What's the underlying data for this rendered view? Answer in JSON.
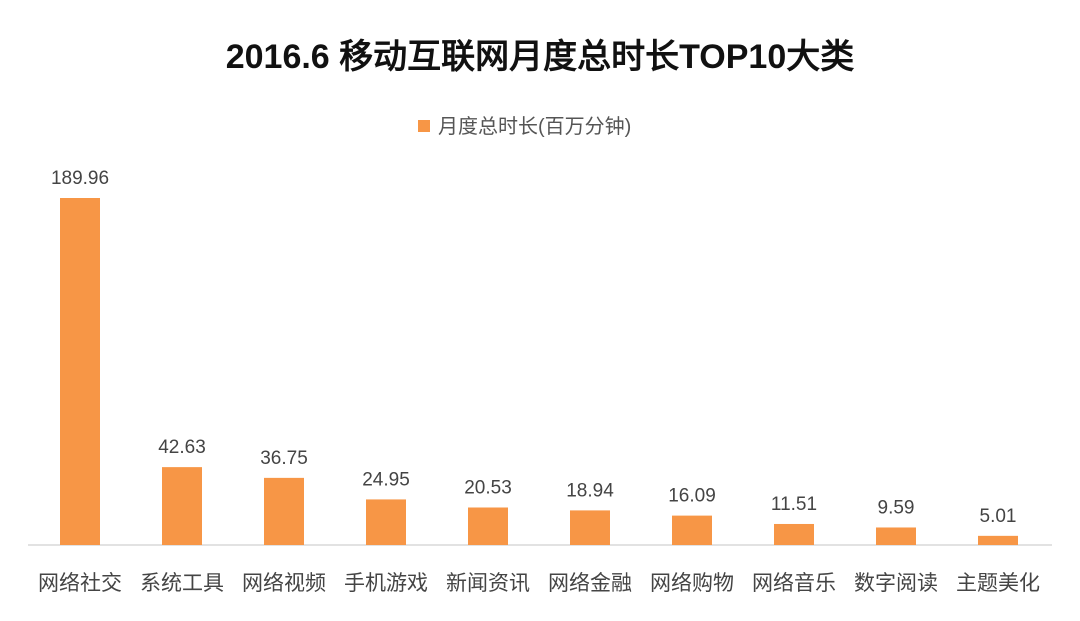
{
  "chart_data": {
    "type": "bar",
    "title": "2016.6 移动互联网月度总时长TOP10大类",
    "categories": [
      "网络社交",
      "系统工具",
      "网络视频",
      "手机游戏",
      "新闻资讯",
      "网络金融",
      "网络购物",
      "网络音乐",
      "数字阅读",
      "主题美化"
    ],
    "series": [
      {
        "name": "月度总时长(百万分钟)",
        "values": [
          189.96,
          42.63,
          36.75,
          24.95,
          20.53,
          18.94,
          16.09,
          11.51,
          9.59,
          5.01
        ],
        "color": "#F79646"
      }
    ],
    "data_labels": [
      "189.96",
      "42.63",
      "36.75",
      "24.95",
      "20.53",
      "18.94",
      "16.09",
      "11.51",
      "9.59",
      "5.01"
    ],
    "ylim": [
      0,
      190
    ],
    "grid": false,
    "legend": "top-center",
    "y_axis_visible": false
  }
}
